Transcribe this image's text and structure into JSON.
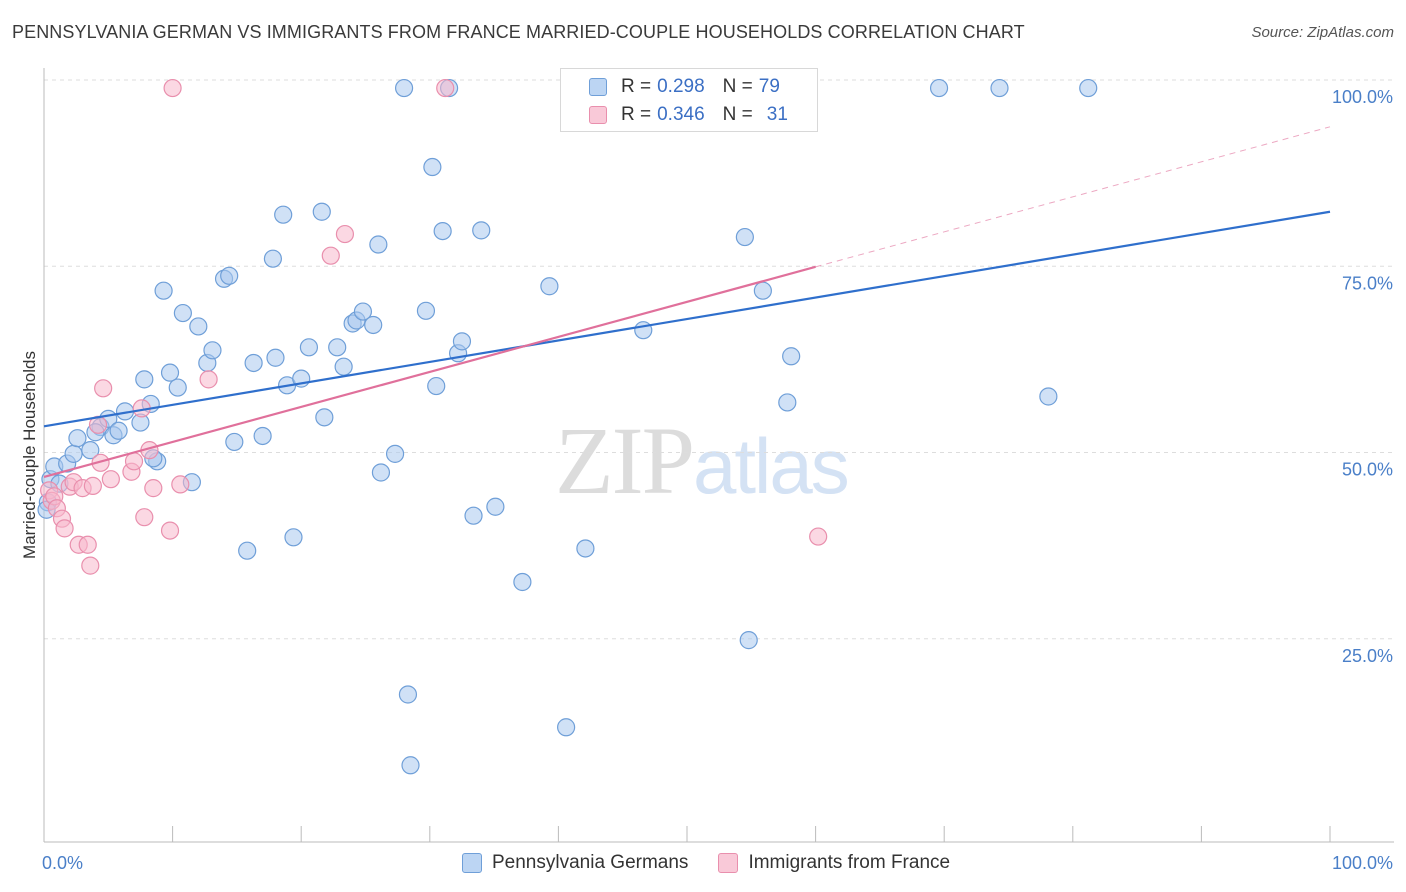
{
  "title": "PENNSYLVANIA GERMAN VS IMMIGRANTS FROM FRANCE MARRIED-COUPLE HOUSEHOLDS CORRELATION CHART",
  "source": "Source: ZipAtlas.com",
  "watermark": {
    "zip": "ZIP",
    "atlas": "atlas"
  },
  "legend": {
    "rows": [
      {
        "r_label": "R =",
        "r_value": "0.298",
        "n_label": "N =",
        "n_value": "79"
      },
      {
        "r_label": "R =",
        "r_value": "0.346",
        "n_label": "N =",
        "n_value": "31"
      }
    ]
  },
  "bottom_legend": [
    "Pennsylvania Germans",
    "Immigrants from France"
  ],
  "colors": {
    "blue_fill": "#a9c8ee",
    "blue_stroke": "#6f9fd8",
    "blue_line": "#2f6fcc",
    "pink_fill": "#f7b8cc",
    "pink_stroke": "#e98fad",
    "pink_line": "#e0709b",
    "grid": "#dddddd",
    "tick_text": "#4a7fc8"
  },
  "chart_data": {
    "type": "scatter",
    "title": "PENNSYLVANIA GERMAN VS IMMIGRANTS FROM FRANCE MARRIED-COUPLE HOUSEHOLDS CORRELATION CHART",
    "xlabel": "",
    "ylabel": "Married-couple Households",
    "xlim": [
      0,
      100
    ],
    "ylim": [
      0,
      100
    ],
    "x_tick_labels": [
      "0.0%",
      "100.0%"
    ],
    "y_ticks": [
      25,
      50,
      75,
      100
    ],
    "y_tick_labels": [
      "25.0%",
      "50.0%",
      "75.0%",
      "100.0%"
    ],
    "grid": true,
    "legend_position": "top-center",
    "series": [
      {
        "name": "Pennsylvania Germans",
        "R": 0.298,
        "N": 79,
        "trend": {
          "x": [
            0,
            100
          ],
          "y": [
            55.8,
            84.6
          ]
        },
        "points": [
          [
            0.3,
            45.6
          ],
          [
            0.5,
            48.7
          ],
          [
            0.8,
            50.4
          ],
          [
            1.2,
            48.1
          ],
          [
            1.8,
            50.8
          ],
          [
            2.3,
            52.1
          ],
          [
            2.6,
            54.2
          ],
          [
            3.6,
            52.6
          ],
          [
            4.4,
            55.7
          ],
          [
            5.0,
            56.8
          ],
          [
            5.4,
            54.6
          ],
          [
            5.8,
            55.2
          ],
          [
            6.3,
            57.8
          ],
          [
            7.5,
            56.3
          ],
          [
            7.8,
            62.1
          ],
          [
            8.3,
            58.8
          ],
          [
            8.8,
            51.1
          ],
          [
            9.3,
            74.0
          ],
          [
            9.8,
            63.0
          ],
          [
            10.4,
            61.0
          ],
          [
            10.8,
            71.0
          ],
          [
            11.5,
            48.3
          ],
          [
            12.0,
            69.2
          ],
          [
            12.7,
            64.3
          ],
          [
            13.1,
            66.0
          ],
          [
            14.0,
            75.6
          ],
          [
            14.4,
            76.0
          ],
          [
            14.8,
            53.7
          ],
          [
            15.8,
            39.1
          ],
          [
            16.3,
            64.3
          ],
          [
            17.0,
            54.5
          ],
          [
            17.8,
            78.3
          ],
          [
            18.0,
            65.0
          ],
          [
            18.6,
            84.2
          ],
          [
            18.9,
            61.3
          ],
          [
            19.4,
            40.9
          ],
          [
            20.0,
            62.2
          ],
          [
            20.6,
            66.4
          ],
          [
            21.6,
            84.6
          ],
          [
            21.8,
            57.0
          ],
          [
            22.8,
            66.4
          ],
          [
            23.3,
            63.8
          ],
          [
            24.0,
            69.6
          ],
          [
            24.3,
            70.0
          ],
          [
            24.8,
            71.2
          ],
          [
            25.6,
            69.4
          ],
          [
            26.0,
            80.2
          ],
          [
            26.2,
            49.6
          ],
          [
            27.3,
            52.1
          ],
          [
            28.3,
            19.8
          ],
          [
            28.5,
            10.3
          ],
          [
            29.7,
            71.3
          ],
          [
            30.2,
            90.6
          ],
          [
            30.5,
            61.2
          ],
          [
            31.0,
            82.0
          ],
          [
            32.2,
            65.6
          ],
          [
            32.5,
            67.2
          ],
          [
            33.4,
            43.8
          ],
          [
            34.0,
            82.1
          ],
          [
            35.1,
            45.0
          ],
          [
            37.2,
            34.9
          ],
          [
            39.3,
            74.6
          ],
          [
            40.6,
            15.4
          ],
          [
            42.1,
            39.4
          ],
          [
            46.6,
            68.7
          ],
          [
            54.5,
            81.2
          ],
          [
            54.8,
            27.1
          ],
          [
            55.9,
            74.0
          ],
          [
            57.8,
            59.0
          ],
          [
            58.1,
            65.2
          ],
          [
            78.1,
            59.8
          ],
          [
            28.0,
            101.2
          ],
          [
            31.5,
            101.2
          ],
          [
            69.6,
            101.2
          ],
          [
            74.3,
            101.2
          ],
          [
            81.2,
            101.2
          ],
          [
            0.2,
            44.6
          ],
          [
            4.0,
            55.0
          ],
          [
            8.5,
            51.5
          ]
        ]
      },
      {
        "name": "Immigrants from France",
        "R": 0.346,
        "N": 31,
        "trend": {
          "x": [
            0,
            60
          ],
          "y": [
            49.0,
            77.2
          ]
        },
        "trend_extension": {
          "x": [
            60,
            100
          ],
          "y": [
            77.2,
            96.0
          ]
        },
        "points": [
          [
            0.4,
            47.2
          ],
          [
            0.6,
            45.8
          ],
          [
            0.8,
            46.4
          ],
          [
            1.0,
            44.8
          ],
          [
            1.4,
            43.4
          ],
          [
            1.6,
            42.1
          ],
          [
            2.0,
            47.7
          ],
          [
            2.3,
            48.3
          ],
          [
            2.7,
            39.9
          ],
          [
            3.0,
            47.5
          ],
          [
            3.4,
            39.9
          ],
          [
            3.6,
            37.1
          ],
          [
            4.2,
            56.0
          ],
          [
            4.4,
            50.9
          ],
          [
            4.6,
            60.9
          ],
          [
            5.2,
            48.7
          ],
          [
            6.8,
            49.7
          ],
          [
            7.0,
            51.1
          ],
          [
            7.6,
            58.2
          ],
          [
            7.8,
            43.6
          ],
          [
            8.2,
            52.6
          ],
          [
            8.5,
            47.5
          ],
          [
            9.8,
            41.8
          ],
          [
            10.6,
            48.0
          ],
          [
            12.8,
            62.1
          ],
          [
            22.3,
            78.7
          ],
          [
            23.4,
            81.6
          ],
          [
            60.2,
            41.0
          ],
          [
            10.0,
            101.2
          ],
          [
            31.2,
            101.2
          ],
          [
            3.8,
            47.8
          ]
        ]
      }
    ]
  }
}
